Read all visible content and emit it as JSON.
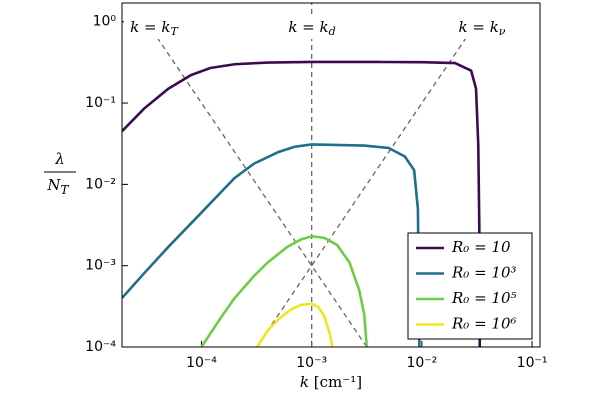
{
  "chart_data": {
    "type": "line",
    "xscale": "log",
    "yscale": "log",
    "xlabel": {
      "text": "k",
      "unit": "[cm⁻¹]"
    },
    "ylabel": {
      "numerator": "λ",
      "denominator": "N",
      "subscript": "T"
    },
    "xlim": [
      1.9e-05,
      0.118
    ],
    "ylim": [
      0.0001,
      1.7
    ],
    "xticks": [
      {
        "value": 0.0001,
        "label": "10⁻⁴"
      },
      {
        "value": 0.001,
        "label": "10⁻³"
      },
      {
        "value": 0.01,
        "label": "10⁻²"
      },
      {
        "value": 0.1,
        "label": "10⁻¹"
      }
    ],
    "yticks": [
      {
        "value": 0.0001,
        "label": "10⁻⁴"
      },
      {
        "value": 0.001,
        "label": "10⁻³"
      },
      {
        "value": 0.01,
        "label": "10⁻²"
      },
      {
        "value": 0.1,
        "label": "10⁻¹"
      },
      {
        "value": 1,
        "label": "10⁰"
      }
    ],
    "legend": "lower right",
    "reference_lines": [
      {
        "label": "k = k",
        "subscript": "T",
        "x": [
          3.2e-05,
          0.00316
        ],
        "y": [
          0.98,
          0.0001
        ]
      },
      {
        "label": "k = k",
        "subscript": "d",
        "x": [
          0.001,
          0.001
        ],
        "y": [
          0.0001,
          1.7
        ]
      },
      {
        "label": "k = k",
        "subscript": "ν",
        "x": [
          0.000316,
          0.031
        ],
        "y": [
          0.0001,
          0.96
        ]
      }
    ],
    "series": [
      {
        "name": "R₀ = 10",
        "color": "#3d0a50",
        "x": [
          1.9e-05,
          3e-05,
          5e-05,
          8e-05,
          0.00012,
          0.0002,
          0.0004,
          0.001,
          0.004,
          0.01,
          0.02,
          0.028,
          0.031,
          0.0325,
          0.0332,
          0.0335
        ],
        "values": [
          0.045,
          0.085,
          0.15,
          0.22,
          0.27,
          0.3,
          0.315,
          0.32,
          0.32,
          0.318,
          0.31,
          0.25,
          0.15,
          0.03,
          0.003,
          0.0001
        ]
      },
      {
        "name": "R₀ = 10³",
        "color": "#1f6e8a",
        "x": [
          1.9e-05,
          3e-05,
          5e-05,
          0.0001,
          0.00015,
          0.0002,
          0.0003,
          0.0005,
          0.0007,
          0.001,
          0.003,
          0.005,
          0.007,
          0.0085,
          0.0092,
          0.0095
        ],
        "values": [
          0.0004,
          0.0008,
          0.0017,
          0.0045,
          0.008,
          0.012,
          0.018,
          0.025,
          0.029,
          0.031,
          0.03,
          0.028,
          0.022,
          0.015,
          0.005,
          0.0001
        ]
      },
      {
        "name": "R₀ = 10⁵",
        "color": "#6ccd45",
        "x": [
          0.0001,
          0.00015,
          0.0002,
          0.0003,
          0.0004,
          0.0006,
          0.0008,
          0.001,
          0.0013,
          0.0017,
          0.0022,
          0.0027,
          0.003,
          0.00316
        ],
        "values": [
          0.0001,
          0.00023,
          0.0004,
          0.00075,
          0.0011,
          0.0017,
          0.0021,
          0.0023,
          0.0022,
          0.0018,
          0.0011,
          0.0005,
          0.00025,
          0.0001
        ]
      },
      {
        "name": "R₀ = 10⁶",
        "color": "#f2e51d",
        "x": [
          0.00032,
          0.0004,
          0.0005,
          0.00065,
          0.0008,
          0.001,
          0.00115,
          0.0013,
          0.00145,
          0.00155
        ],
        "values": [
          0.0001,
          0.00016,
          0.00022,
          0.00029,
          0.00033,
          0.00034,
          0.00031,
          0.00024,
          0.00015,
          0.0001
        ]
      }
    ]
  }
}
